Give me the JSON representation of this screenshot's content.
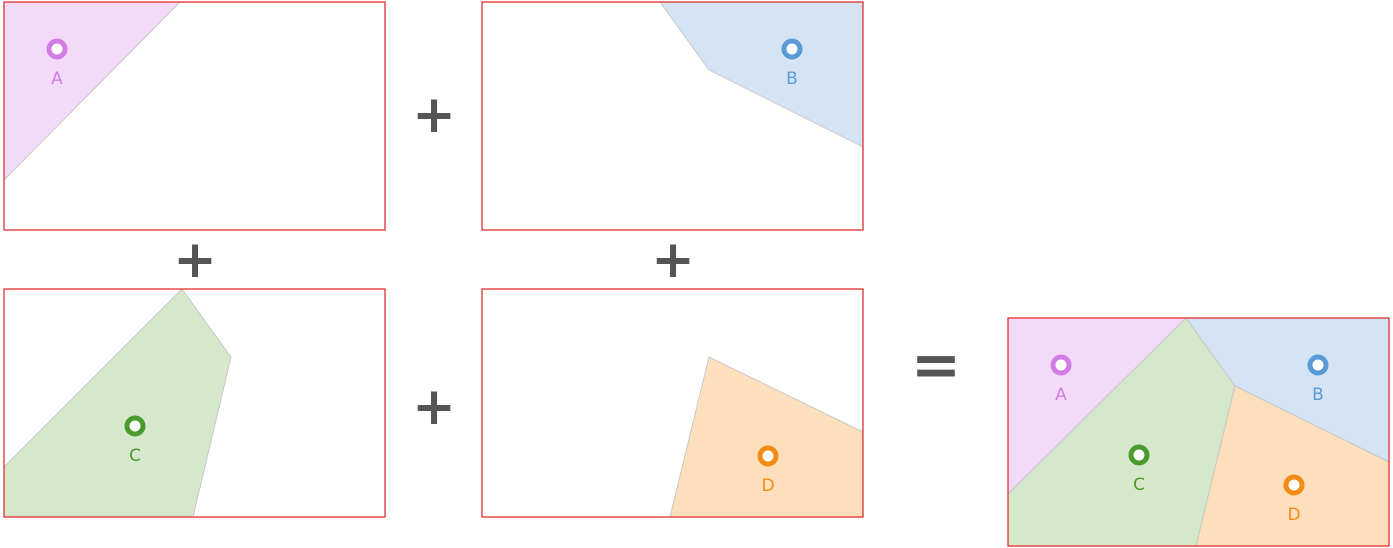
{
  "colors": {
    "frame": "#e02020",
    "region_edge": "#c8c8c8",
    "operator": "#555555",
    "A": {
      "fill": "#f4daf9",
      "dot": "#d27de6",
      "text": "#d27de6"
    },
    "B": {
      "fill": "#d5e4f4",
      "dot": "#5b9bd5",
      "text": "#5b9bd5"
    },
    "C": {
      "fill": "#d5e8cb",
      "dot": "#4a9a2e",
      "text": "#4a9a2e"
    },
    "D": {
      "fill": "#fddfbc",
      "dot": "#f28c16",
      "text": "#f28c16"
    }
  },
  "operators": {
    "plus": "+",
    "equals": "="
  },
  "sites": [
    {
      "key": "A",
      "label": "A"
    },
    {
      "key": "B",
      "label": "B"
    },
    {
      "key": "C",
      "label": "C"
    },
    {
      "key": "D",
      "label": "D"
    }
  ]
}
